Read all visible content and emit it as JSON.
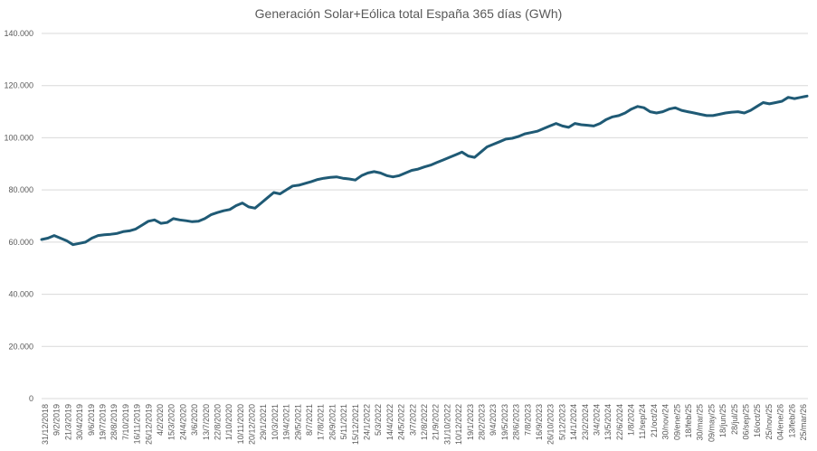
{
  "chart_data": {
    "type": "line",
    "title": "Generación Solar+Eólica total España 365 días (GWh)",
    "xlabel": "",
    "ylabel": "",
    "ylim": [
      0,
      140000
    ],
    "grid": true,
    "legend": "none",
    "series_color": "#1f5a75",
    "grid_color": "#d9d9d9",
    "y_tick_values": [
      0,
      20000,
      40000,
      60000,
      80000,
      100000,
      120000,
      140000
    ],
    "y_tick_labels": [
      "0",
      "20.000",
      "40.000",
      "60.000",
      "80.000",
      "100.000",
      "120.000",
      "140.000"
    ],
    "x_tick_labels": [
      "31/12/2018",
      "9/2/2019",
      "21/3/2019",
      "30/4/2019",
      "9/6/2019",
      "19/7/2019",
      "28/8/2019",
      "7/10/2019",
      "16/11/2019",
      "26/12/2019",
      "4/2/2020",
      "15/3/2020",
      "24/4/2020",
      "3/6/2020",
      "13/7/2020",
      "22/8/2020",
      "1/10/2020",
      "10/11/2020",
      "20/12/2020",
      "29/1/2021",
      "10/3/2021",
      "19/4/2021",
      "29/5/2021",
      "8/7/2021",
      "17/8/2021",
      "26/9/2021",
      "5/11/2021",
      "15/12/2021",
      "24/1/2022",
      "5/3/2022",
      "14/4/2022",
      "24/5/2022",
      "3/7/2022",
      "12/8/2022",
      "21/9/2022",
      "31/10/2022",
      "10/12/2022",
      "19/1/2023",
      "28/2/2023",
      "9/4/2023",
      "19/5/2023",
      "28/6/2023",
      "7/8/2023",
      "16/9/2023",
      "26/10/2023",
      "5/12/2023",
      "14/1/2024",
      "23/2/2024",
      "3/4/2024",
      "13/5/2024",
      "22/6/2024",
      "1/8/2024",
      "11/sep/24",
      "21/oct/24",
      "30/nov/24",
      "09/ene/25",
      "18/feb/25",
      "30/mar/25",
      "09/may/25",
      "18/jun/25",
      "28/jul/25",
      "06/sep/25",
      "16/oct/25",
      "25/nov/25",
      "04/ene/26",
      "13/feb/26",
      "25/mar/26"
    ],
    "series": [
      {
        "values": [
          61000,
          61500,
          62500,
          61500,
          60500,
          59000,
          59500,
          60000,
          61500,
          62500,
          62800,
          63000,
          63300,
          64000,
          64300,
          65000,
          66500,
          68000,
          68500,
          67200,
          67500,
          69000,
          68500,
          68200,
          67800,
          68000,
          69000,
          70500,
          71300,
          72000,
          72500,
          74000,
          75000,
          73500,
          73000,
          75000,
          77000,
          79000,
          78500,
          80000,
          81500,
          81800,
          82500,
          83200,
          84000,
          84500,
          84800,
          85000,
          84500,
          84200,
          83800,
          85500,
          86500,
          87000,
          86500,
          85500,
          85000,
          85500,
          86500,
          87500,
          88000,
          88800,
          89500,
          90500,
          91500,
          92500,
          93500,
          94500,
          93000,
          92500,
          94500,
          96500,
          97500,
          98500,
          99500,
          99800,
          100500,
          101500,
          102000,
          102500,
          103500,
          104500,
          105500,
          104500,
          104000,
          105500,
          105000,
          104800,
          104500,
          105500,
          107000,
          108000,
          108500,
          109500,
          111000,
          112000,
          111500,
          110000,
          109500,
          110000,
          111000,
          111500,
          110500,
          110000,
          109500,
          109000,
          108500,
          108500,
          109000,
          109500,
          109800,
          110000,
          109500,
          110500,
          112000,
          113500,
          113000,
          113500,
          114000,
          115500,
          115000,
          115500,
          116000
        ]
      }
    ]
  }
}
